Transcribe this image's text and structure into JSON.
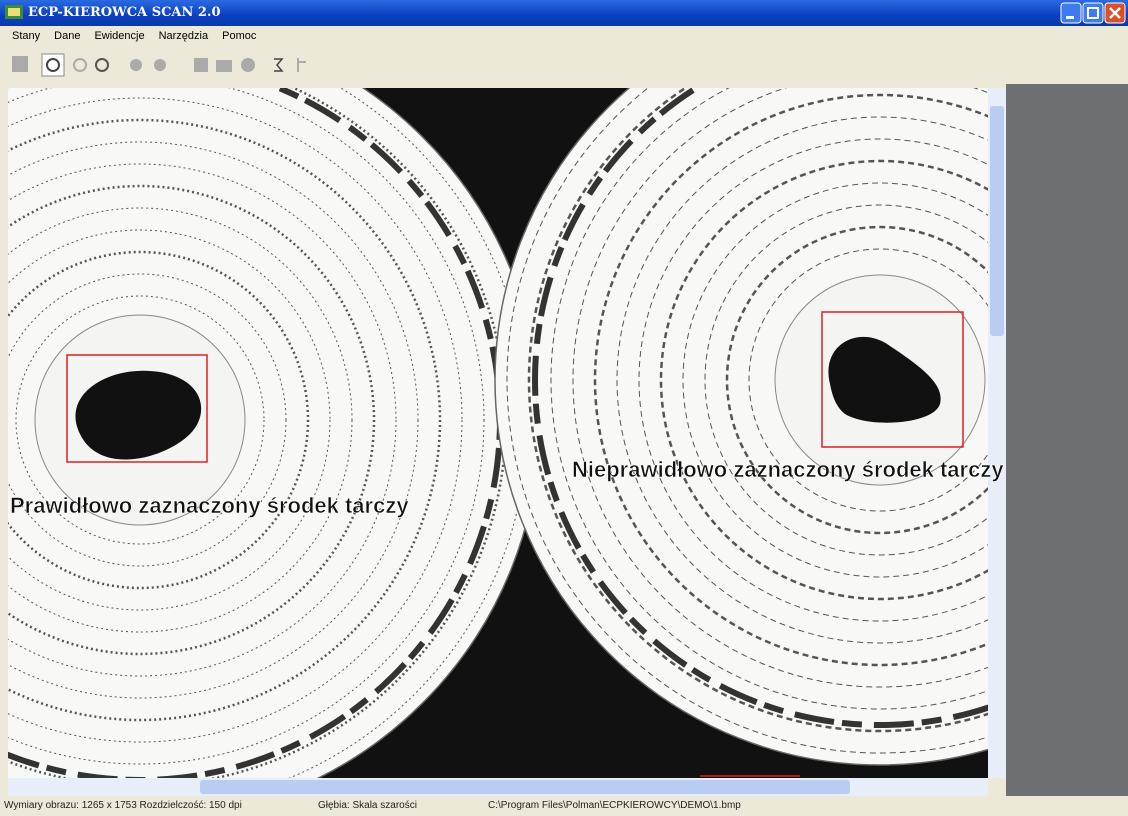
{
  "window": {
    "title": "ECP-KIEROWCA SCAN 2.0"
  },
  "menu": [
    "Stany",
    "Dane",
    "Ewidencje",
    "Narzędzia",
    "Pomoc"
  ],
  "annotations": {
    "left": "Prawidłowo zaznaczony środek tarczy",
    "right": "Nieprawidłowo zaznaczony środek tarczy"
  },
  "status_bar": [
    "Wymiary obrazu:  1265 x 1753 Rozdzielczość:  150 dpi",
    "Głębia:  Skala szarości",
    "C:\\Program Files\\Polman\\ECPKIEROWCY\\DEMO\\1.bmp"
  ]
}
